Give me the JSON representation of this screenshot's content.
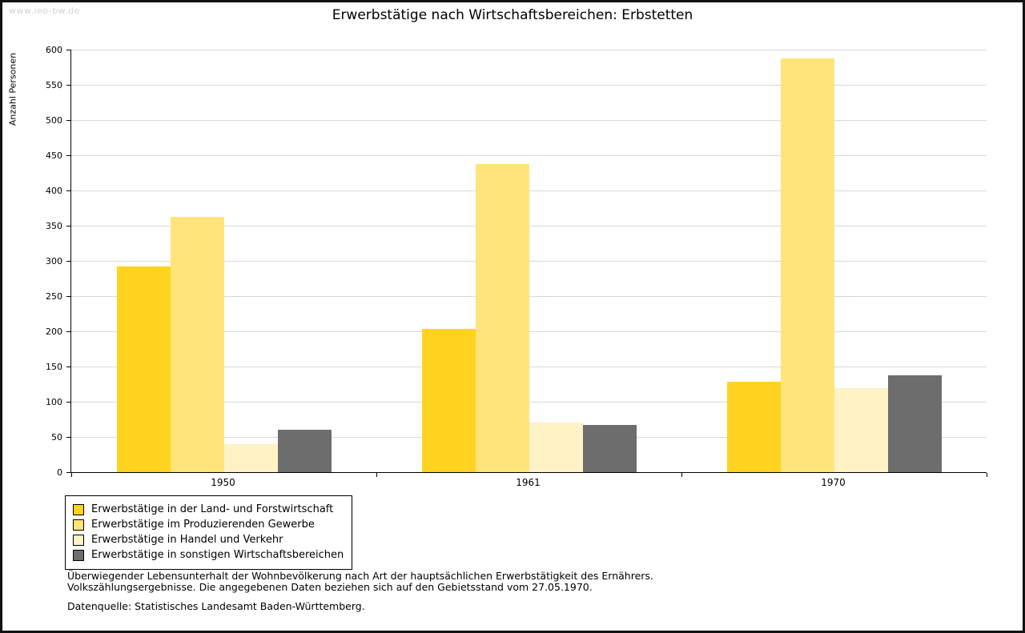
{
  "watermark": "www.leo-bw.de",
  "title": "Erwerbstätige nach Wirtschaftsbereichen: Erbstetten",
  "caption": {
    "line1": "Überwiegender Lebensunterhalt der Wohnbevölkerung nach Art der hauptsächlichen Erwerbstätigkeit des Ernährers.",
    "line2": "Volkszählungsergebnisse. Die angegebenen Daten beziehen sich auf den Gebietsstand vom 27.05.1970.",
    "source": "Datenquelle: Statistisches Landesamt Baden-Württemberg."
  },
  "chart_data": {
    "type": "bar",
    "title": "Erwerbstätige nach Wirtschaftsbereichen: Erbstetten",
    "xlabel": "",
    "ylabel": "Anzahl Personen",
    "ylim": [
      0,
      600
    ],
    "ytick_step": 50,
    "yticks": [
      0,
      50,
      100,
      150,
      200,
      250,
      300,
      350,
      400,
      450,
      500,
      550,
      600
    ],
    "grid": true,
    "legend_position": "bottom-left",
    "categories": [
      "1950",
      "1961",
      "1970"
    ],
    "series": [
      {
        "name": "Erwerbstätige in der Land- und Forstwirtschaft",
        "color": "#ffd320",
        "values": [
          292,
          204,
          129
        ]
      },
      {
        "name": "Erwerbstätige im Produzierenden Gewerbe",
        "color": "#ffe47c",
        "values": [
          363,
          437,
          587
        ]
      },
      {
        "name": "Erwerbstätige in Handel und Verkehr",
        "color": "#fff3c6",
        "values": [
          40,
          70,
          119
        ]
      },
      {
        "name": "Erwerbstätige in sonstigen Wirtschaftsbereichen",
        "color": "#6d6d6d",
        "values": [
          60,
          67,
          137
        ]
      }
    ]
  }
}
